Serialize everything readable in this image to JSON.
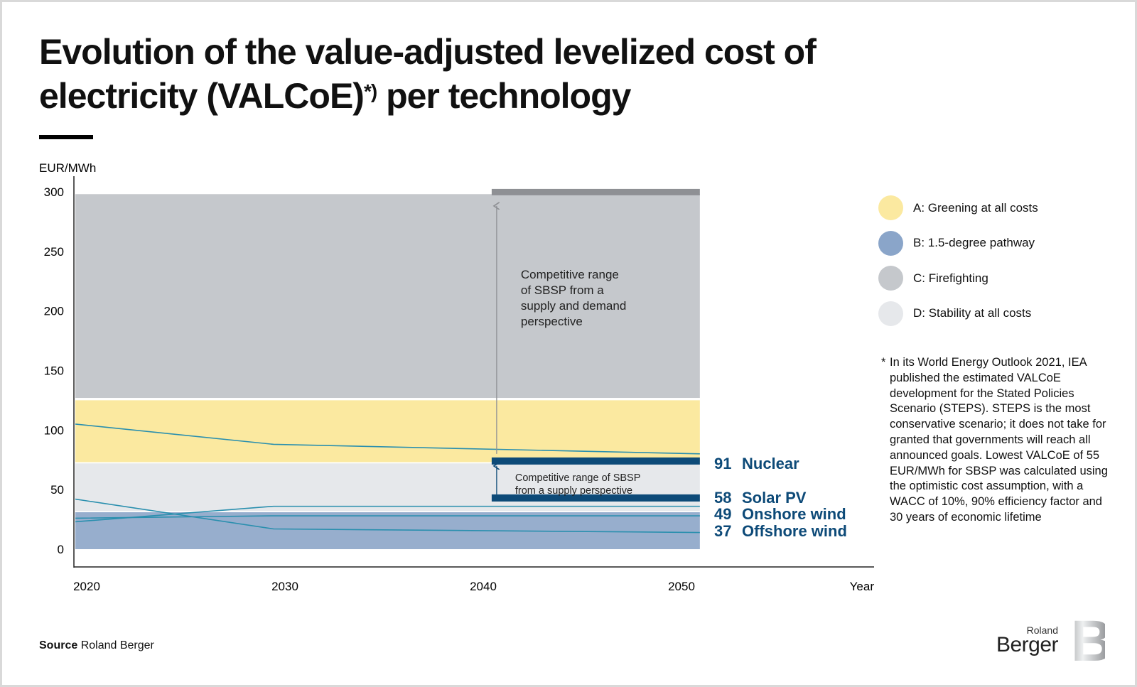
{
  "title_line1": "Evolution of the value-adjusted levelized cost of",
  "title_line2_pre": "electricity (VALCoE)",
  "title_sup": "*)",
  "title_line2_post": " per technology",
  "chart_data": {
    "type": "area",
    "ylabel": "EUR/MWh",
    "xlabel": "Year",
    "xlim": [
      2020,
      2056
    ],
    "ylim": [
      0,
      300
    ],
    "x_ticks": [
      "2020",
      "2030",
      "2040",
      "2050"
    ],
    "y_ticks": [
      "0",
      "50",
      "100",
      "150",
      "200",
      "250",
      "300"
    ],
    "bands": [
      {
        "name": "B: 1.5-degree pathway",
        "range": [
          0,
          31
        ],
        "color": "#97aecd"
      },
      {
        "name": "D: Stability at all costs",
        "range": [
          32,
          72
        ],
        "color": "#e6e8eb"
      },
      {
        "name": "A: Greening at all costs",
        "range": [
          73,
          125
        ],
        "color": "#fbe9a0"
      },
      {
        "name": "C: Firefighting",
        "range": [
          127,
          298
        ],
        "color": "#c5c8cc"
      }
    ],
    "band_x": [
      2020,
      2051.5
    ],
    "lines": [
      {
        "x": [
          2020,
          2030,
          2051.5
        ],
        "y": [
          105,
          88,
          80
        ]
      },
      {
        "x": [
          2020,
          2030,
          2051.5
        ],
        "y": [
          23,
          36,
          36
        ]
      },
      {
        "x": [
          2020,
          2030,
          2051.5
        ],
        "y": [
          26,
          28,
          28
        ]
      },
      {
        "x": [
          2020,
          2030,
          2051.5
        ],
        "y": [
          42,
          17,
          14
        ]
      }
    ],
    "line_color": "#2a8fae",
    "sbsp_ranges": [
      {
        "x": [
          2041,
          2051.5
        ],
        "low": 43,
        "high": 74,
        "color": "#0d4a78",
        "annotation": [
          "Competitive range of SBSP",
          "from a supply perspective"
        ]
      },
      {
        "x": [
          2041,
          2051.5
        ],
        "low": 80,
        "high": 300,
        "color": "#8e9094",
        "annotation": [
          "Competitive range",
          "of SBSP from a",
          "supply and demand",
          "perspective"
        ]
      }
    ],
    "end_labels": [
      {
        "value": "91",
        "name": "Nuclear"
      },
      {
        "value": "58",
        "name": "Solar PV"
      },
      {
        "value": "49",
        "name": "Onshore wind"
      },
      {
        "value": "37",
        "name": "Offshore wind"
      }
    ],
    "end_label_color": "#0d4a78",
    "grid": false,
    "legend_position": "right"
  },
  "legend": [
    {
      "label": "A: Greening at all costs",
      "color": "#fbe9a0"
    },
    {
      "label": "B: 1.5-degree pathway",
      "color": "#8aa5c9"
    },
    {
      "label": "C: Firefighting",
      "color": "#c5c8cc"
    },
    {
      "label": "D: Stability at all costs",
      "color": "#e6e8eb"
    }
  ],
  "footnote_star": "*",
  "footnote": "In its World Energy Outlook 2021, IEA published the estimated VALCoE development for the Stated Policies Scenario (STEPS). STEPS is the most conservative scenario; it does not take for granted that governments will reach all announced goals. Lowest VALCoE of 55 EUR/MWh for SBSP was calculated using the optimistic cost assumption, with a WACC of 10%, 90% efficiency factor and 30 years of economic lifetime",
  "source_label": "Source",
  "source_value": "Roland Berger",
  "logo": {
    "line1": "Roland",
    "line2": "Berger",
    "mark": "B"
  }
}
